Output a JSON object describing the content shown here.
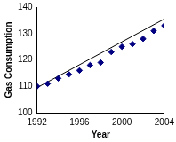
{
  "chart_data": {
    "type": "scatter",
    "x_label": "Year",
    "y_label": "Gas Consumption",
    "x": [
      1992,
      1993,
      1994,
      1995,
      1996,
      1997,
      1998,
      1999,
      2000,
      2001,
      2002,
      2003,
      2004
    ],
    "series": [
      {
        "values": [
          110,
          111,
          113,
          114.5,
          116,
          118,
          119,
          123,
          125,
          126,
          128,
          131,
          133
        ],
        "color": "#000080",
        "marker": "diamond",
        "line_style": "none"
      },
      {
        "type": "line",
        "values": [
          109.5,
          null,
          null,
          null,
          null,
          null,
          null,
          null,
          null,
          null,
          null,
          null,
          135.5
        ],
        "color": "#000000",
        "marker": "none",
        "line_style": "solid"
      }
    ],
    "xlim": [
      1992,
      2004
    ],
    "xticks": [
      1992,
      1996,
      2000,
      2004
    ],
    "ylim": [
      100,
      140
    ],
    "yticks": [
      100,
      110,
      120,
      130,
      140
    ],
    "grid": false
  }
}
